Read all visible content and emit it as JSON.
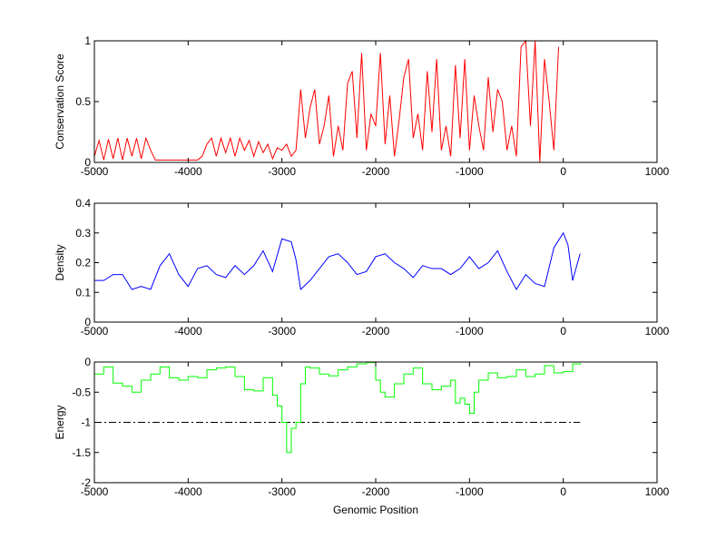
{
  "chart_data": [
    {
      "type": "line",
      "ylabel": "Conservation Score",
      "xlabel": "",
      "xlim": [
        -5000,
        1000
      ],
      "ylim": [
        0,
        1
      ],
      "xticks": [
        "-5000",
        "-4000",
        "-3000",
        "-2000",
        "-1000",
        "0",
        "1000"
      ],
      "yticks": [
        "0",
        "0.5",
        "1"
      ],
      "ytick_values": [
        0,
        0.5,
        1
      ],
      "color": "#ff0000",
      "x_start": -5000,
      "x_step": 50,
      "values": [
        0.05,
        0.18,
        0.02,
        0.19,
        0.03,
        0.2,
        0.02,
        0.2,
        0.05,
        0.2,
        0.03,
        0.2,
        0.1,
        0.02,
        0.02,
        0.02,
        0.02,
        0.02,
        0.02,
        0.02,
        0.02,
        0.02,
        0.02,
        0.05,
        0.15,
        0.2,
        0.05,
        0.2,
        0.08,
        0.2,
        0.05,
        0.2,
        0.1,
        0.18,
        0.05,
        0.17,
        0.08,
        0.15,
        0.03,
        0.12,
        0.1,
        0.15,
        0.05,
        0.1,
        0.6,
        0.2,
        0.45,
        0.6,
        0.15,
        0.3,
        0.55,
        0.05,
        0.3,
        0.1,
        0.65,
        0.75,
        0.2,
        0.9,
        0.1,
        0.4,
        0.3,
        0.9,
        0.15,
        0.55,
        0.05,
        0.35,
        0.7,
        0.85,
        0.2,
        0.4,
        0.1,
        0.75,
        0.25,
        0.85,
        0.1,
        0.3,
        0.05,
        0.8,
        0.2,
        0.85,
        0.1,
        0.55,
        0.3,
        0.1,
        0.7,
        0.25,
        0.6,
        0.5,
        0.1,
        0.3,
        0.05,
        0.95,
        1.0,
        0.3,
        1.0,
        0.0,
        0.85,
        0.5,
        0.1,
        0.95
      ]
    },
    {
      "type": "line",
      "ylabel": "Density",
      "xlabel": "",
      "xlim": [
        -5000,
        1000
      ],
      "ylim": [
        0,
        0.4
      ],
      "xticks": [
        "-5000",
        "-4000",
        "-3000",
        "-2000",
        "-1000",
        "0",
        "1000"
      ],
      "yticks": [
        "0",
        "0.1",
        "0.2",
        "0.3",
        "0.4"
      ],
      "ytick_values": [
        0,
        0.1,
        0.2,
        0.3,
        0.4
      ],
      "color": "#0000ff",
      "x": [
        -5000,
        -4900,
        -4800,
        -4700,
        -4600,
        -4500,
        -4400,
        -4300,
        -4200,
        -4100,
        -4000,
        -3900,
        -3800,
        -3700,
        -3600,
        -3500,
        -3400,
        -3300,
        -3200,
        -3100,
        -3000,
        -2900,
        -2850,
        -2800,
        -2700,
        -2600,
        -2500,
        -2400,
        -2300,
        -2200,
        -2100,
        -2000,
        -1900,
        -1800,
        -1700,
        -1600,
        -1500,
        -1400,
        -1300,
        -1200,
        -1100,
        -1000,
        -900,
        -800,
        -700,
        -600,
        -500,
        -400,
        -300,
        -200,
        -100,
        0,
        50,
        100,
        180
      ],
      "values": [
        0.14,
        0.14,
        0.16,
        0.16,
        0.11,
        0.12,
        0.11,
        0.19,
        0.23,
        0.16,
        0.12,
        0.18,
        0.19,
        0.16,
        0.15,
        0.19,
        0.16,
        0.19,
        0.24,
        0.17,
        0.28,
        0.27,
        0.21,
        0.11,
        0.14,
        0.18,
        0.22,
        0.23,
        0.2,
        0.16,
        0.17,
        0.22,
        0.23,
        0.2,
        0.18,
        0.15,
        0.19,
        0.18,
        0.18,
        0.16,
        0.18,
        0.22,
        0.18,
        0.2,
        0.24,
        0.17,
        0.11,
        0.16,
        0.13,
        0.12,
        0.25,
        0.3,
        0.26,
        0.14,
        0.23
      ]
    },
    {
      "type": "line",
      "ylabel": "Energy",
      "xlabel": "Genomic Position",
      "xlim": [
        -5000,
        1000
      ],
      "ylim": [
        -2,
        0
      ],
      "xticks": [
        "-5000",
        "-4000",
        "-3000",
        "-2000",
        "-1000",
        "0",
        "1000"
      ],
      "yticks": [
        "-2",
        "-1.5",
        "-1",
        "-0.5",
        "0"
      ],
      "ytick_values": [
        -2,
        -1.5,
        -1,
        -0.5,
        0
      ],
      "color": "#00ff00",
      "threshold": -1,
      "x": [
        -5000,
        -4900,
        -4800,
        -4700,
        -4600,
        -4500,
        -4400,
        -4300,
        -4200,
        -4100,
        -4000,
        -3900,
        -3800,
        -3700,
        -3600,
        -3500,
        -3400,
        -3300,
        -3200,
        -3100,
        -3050,
        -3000,
        -2950,
        -2900,
        -2850,
        -2800,
        -2750,
        -2700,
        -2600,
        -2500,
        -2400,
        -2300,
        -2200,
        -2100,
        -2000,
        -1950,
        -1900,
        -1800,
        -1700,
        -1600,
        -1500,
        -1400,
        -1300,
        -1200,
        -1150,
        -1100,
        -1050,
        -1000,
        -950,
        -900,
        -800,
        -700,
        -600,
        -500,
        -400,
        -300,
        -200,
        -100,
        0,
        100,
        180
      ],
      "values": [
        -0.2,
        -0.08,
        -0.35,
        -0.4,
        -0.5,
        -0.3,
        -0.2,
        -0.08,
        -0.26,
        -0.3,
        -0.24,
        -0.26,
        -0.13,
        -0.1,
        -0.08,
        -0.24,
        -0.46,
        -0.48,
        -0.26,
        -0.55,
        -0.73,
        -1.0,
        -1.5,
        -1.1,
        -1.0,
        -0.36,
        -0.08,
        -0.1,
        -0.2,
        -0.23,
        -0.13,
        -0.08,
        -0.03,
        -0.01,
        -0.3,
        -0.5,
        -0.58,
        -0.36,
        -0.2,
        -0.1,
        -0.36,
        -0.46,
        -0.4,
        -0.3,
        -0.68,
        -0.6,
        -0.7,
        -0.85,
        -0.5,
        -0.3,
        -0.18,
        -0.26,
        -0.24,
        -0.13,
        -0.24,
        -0.2,
        -0.06,
        -0.18,
        -0.16,
        -0.03,
        -0.05
      ]
    }
  ]
}
